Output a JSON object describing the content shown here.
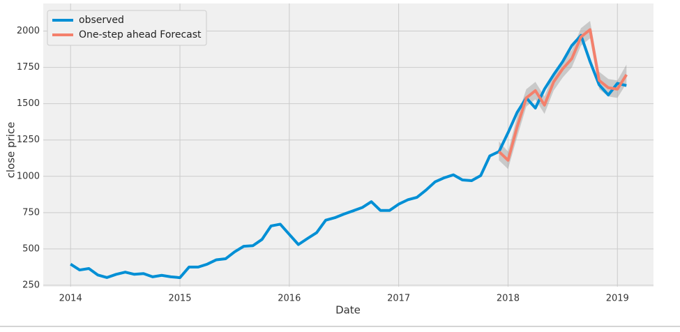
{
  "chart_data": {
    "type": "line",
    "xlabel": "Date",
    "ylabel": "close price",
    "x": [
      2014,
      2014.083,
      2014.167,
      2014.25,
      2014.333,
      2014.417,
      2014.5,
      2014.583,
      2014.667,
      2014.75,
      2014.833,
      2014.917,
      2015,
      2015.083,
      2015.167,
      2015.25,
      2015.333,
      2015.417,
      2015.5,
      2015.583,
      2015.667,
      2015.75,
      2015.833,
      2015.917,
      2016,
      2016.083,
      2016.167,
      2016.25,
      2016.333,
      2016.417,
      2016.5,
      2016.583,
      2016.667,
      2016.75,
      2016.833,
      2016.917,
      2017,
      2017.083,
      2017.167,
      2017.25,
      2017.333,
      2017.417,
      2017.5,
      2017.583,
      2017.667,
      2017.75,
      2017.833,
      2017.917,
      2018,
      2018.083,
      2018.167,
      2018.25,
      2018.333,
      2018.417,
      2018.5,
      2018.583,
      2018.667,
      2018.75,
      2018.833,
      2018.917,
      2019,
      2019.083
    ],
    "series": [
      {
        "name": "observed",
        "color": "#008fd5",
        "values": [
          395,
          355,
          365,
          320,
          303,
          325,
          340,
          325,
          330,
          308,
          318,
          308,
          302,
          375,
          375,
          395,
          425,
          432,
          480,
          518,
          522,
          565,
          658,
          670,
          600,
          530,
          572,
          612,
          698,
          715,
          740,
          762,
          785,
          825,
          765,
          765,
          808,
          838,
          855,
          905,
          962,
          990,
          1010,
          975,
          970,
          1005,
          1140,
          1170,
          1300,
          1440,
          1540,
          1470,
          1600,
          1700,
          1790,
          1900,
          1970,
          1790,
          1630,
          1560,
          1640,
          1625
        ]
      },
      {
        "name": "One-step ahead Forecast",
        "color": "#f4806c",
        "values": [
          null,
          null,
          null,
          null,
          null,
          null,
          null,
          null,
          null,
          null,
          null,
          null,
          null,
          null,
          null,
          null,
          null,
          null,
          null,
          null,
          null,
          null,
          null,
          null,
          null,
          null,
          null,
          null,
          null,
          null,
          null,
          null,
          null,
          null,
          null,
          null,
          null,
          null,
          null,
          null,
          null,
          null,
          null,
          null,
          null,
          null,
          null,
          1170,
          1110,
          1340,
          1540,
          1590,
          1490,
          1650,
          1740,
          1810,
          1960,
          2010,
          1660,
          1610,
          1600,
          1700
        ]
      }
    ],
    "confidence_interval": {
      "color": "#999999",
      "lower": [
        null,
        null,
        null,
        null,
        null,
        null,
        null,
        null,
        null,
        null,
        null,
        null,
        null,
        null,
        null,
        null,
        null,
        null,
        null,
        null,
        null,
        null,
        null,
        null,
        null,
        null,
        null,
        null,
        null,
        null,
        null,
        null,
        null,
        null,
        null,
        null,
        null,
        null,
        null,
        null,
        null,
        null,
        null,
        null,
        null,
        null,
        null,
        1110,
        1050,
        1270,
        1480,
        1530,
        1430,
        1590,
        1680,
        1750,
        1900,
        1950,
        1600,
        1550,
        1540,
        1640
      ],
      "upper": [
        null,
        null,
        null,
        null,
        null,
        null,
        null,
        null,
        null,
        null,
        null,
        null,
        null,
        null,
        null,
        null,
        null,
        null,
        null,
        null,
        null,
        null,
        null,
        null,
        null,
        null,
        null,
        null,
        null,
        null,
        null,
        null,
        null,
        null,
        null,
        null,
        null,
        null,
        null,
        null,
        null,
        null,
        null,
        null,
        null,
        null,
        null,
        1240,
        1170,
        1410,
        1600,
        1650,
        1550,
        1710,
        1800,
        1870,
        2020,
        2070,
        1720,
        1670,
        1660,
        1770
      ]
    },
    "xlim": [
      2013.75,
      2019.33
    ],
    "ylim": [
      240,
      2190
    ],
    "xticks": [
      2014,
      2015,
      2016,
      2017,
      2018,
      2019
    ],
    "yticks": [
      250,
      500,
      750,
      1000,
      1250,
      1500,
      1750,
      2000
    ],
    "grid": true,
    "legend": "upper left"
  }
}
